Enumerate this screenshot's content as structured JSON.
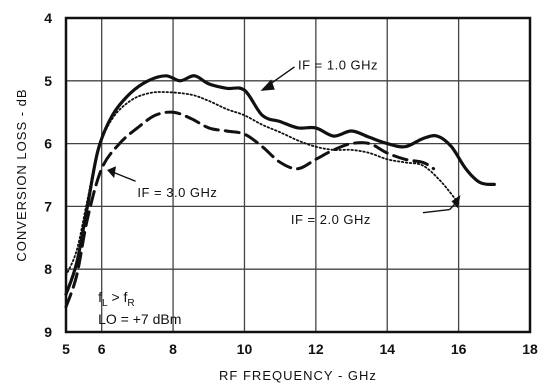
{
  "chart_data": {
    "type": "line",
    "xlabel": "RF FREQUENCY - GHz",
    "ylabel": "CONVERSION LOSS - dB",
    "xlim": [
      5,
      18
    ],
    "ylim": [
      4,
      9
    ],
    "y_inverted": true,
    "grid": true,
    "x_ticks": [
      {
        "value": 5,
        "label": "5"
      },
      {
        "value": 6,
        "label": "6"
      },
      {
        "value": 8,
        "label": "8"
      },
      {
        "value": 10,
        "label": "10"
      },
      {
        "value": 12,
        "label": "12"
      },
      {
        "value": 14,
        "label": "14"
      },
      {
        "value": 16,
        "label": "16"
      },
      {
        "value": 18,
        "label": "18"
      }
    ],
    "y_ticks": [
      {
        "value": 4,
        "label": "4"
      },
      {
        "value": 5,
        "label": "5"
      },
      {
        "value": 6,
        "label": "6"
      },
      {
        "value": 7,
        "label": "7"
      },
      {
        "value": 8,
        "label": "8"
      },
      {
        "value": 9,
        "label": "9"
      }
    ],
    "series": [
      {
        "name": "IF = 1.0 GHz",
        "style": "solid",
        "x": [
          5.0,
          5.3,
          5.6,
          5.9,
          6.3,
          6.8,
          7.3,
          7.8,
          8.2,
          8.6,
          9.0,
          9.5,
          10.0,
          10.5,
          11.0,
          11.5,
          12.0,
          12.5,
          13.0,
          13.5,
          14.0,
          14.5,
          15.0,
          15.4,
          15.8,
          16.2,
          16.6,
          17.0
        ],
        "y": [
          8.4,
          7.9,
          7.0,
          6.1,
          5.55,
          5.2,
          5.0,
          4.92,
          5.0,
          4.92,
          5.05,
          5.12,
          5.15,
          5.55,
          5.65,
          5.75,
          5.75,
          5.88,
          5.8,
          5.9,
          6.0,
          6.05,
          5.92,
          5.88,
          6.05,
          6.4,
          6.62,
          6.65
        ]
      },
      {
        "name": "IF = 2.0 GHz",
        "style": "dotted",
        "x": [
          5.0,
          5.3,
          5.6,
          5.9,
          6.3,
          6.8,
          7.3,
          7.8,
          8.5,
          9.0,
          9.5,
          10.0,
          10.5,
          11.0,
          11.5,
          12.0,
          12.5,
          13.0,
          13.5,
          14.0,
          14.5,
          15.0,
          15.5,
          16.0
        ],
        "y": [
          8.1,
          7.7,
          6.9,
          6.1,
          5.6,
          5.32,
          5.2,
          5.18,
          5.22,
          5.32,
          5.45,
          5.55,
          5.7,
          5.82,
          5.95,
          6.05,
          6.1,
          6.1,
          6.15,
          6.25,
          6.3,
          6.35,
          6.6,
          6.95
        ]
      },
      {
        "name": "IF = 3.0 GHz",
        "style": "dashed",
        "x": [
          5.0,
          5.3,
          5.6,
          6.0,
          6.5,
          7.0,
          7.5,
          8.0,
          8.5,
          9.0,
          9.5,
          10.0,
          10.5,
          11.0,
          11.5,
          12.0,
          12.5,
          13.0,
          13.5,
          14.0,
          14.5,
          15.0,
          15.3
        ],
        "y": [
          8.6,
          8.1,
          7.2,
          6.4,
          6.0,
          5.75,
          5.55,
          5.5,
          5.6,
          5.75,
          5.8,
          5.85,
          6.05,
          6.3,
          6.4,
          6.25,
          6.1,
          6.0,
          6.0,
          6.15,
          6.25,
          6.3,
          6.4
        ]
      }
    ],
    "annotations": {
      "if1": "IF = 1.0 GHz",
      "if2": "IF = 2.0 GHz",
      "if3": "IF = 3.0 GHz",
      "cond_f": "f",
      "cond_L": "L",
      "cond_gt": " > f",
      "cond_R": "R",
      "lo": "LO = +7 dBm"
    }
  }
}
